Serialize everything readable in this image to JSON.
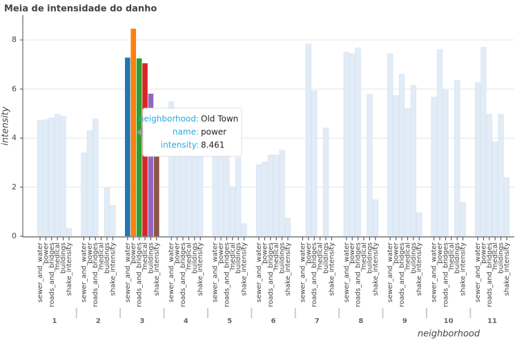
{
  "chart_data": {
    "type": "bar",
    "title": "Meia de intensidade do danho",
    "x_label": "neighborhood",
    "y_label": "intensity",
    "groups": [
      "1",
      "2",
      "3",
      "4",
      "5",
      "6",
      "7",
      "8",
      "9",
      "10",
      "11"
    ],
    "highlight_group": "3",
    "muted_color": "#e1ecf7",
    "series": [
      {
        "name": "sewer_and_water",
        "color": "#1f77b4",
        "values": [
          4.72,
          3.4,
          7.28,
          5.48,
          4.5,
          2.92,
          null,
          7.5,
          7.44,
          5.67,
          6.26
        ]
      },
      {
        "name": "power",
        "color": "#ff7f0e",
        "values": [
          4.75,
          4.3,
          8.461,
          5.0,
          4.7,
          3.03,
          7.84,
          7.44,
          5.73,
          7.61,
          7.7
        ]
      },
      {
        "name": "roads_and_bridges",
        "color": "#2ca02c",
        "values": [
          4.83,
          4.78,
          7.25,
          4.8,
          4.0,
          3.31,
          5.93,
          7.67,
          6.6,
          5.96,
          4.97
        ]
      },
      {
        "name": "medical",
        "color": "#d62728",
        "values": [
          4.97,
          null,
          7.05,
          4.2,
          2.02,
          3.31,
          null,
          null,
          5.2,
          null,
          3.85
        ]
      },
      {
        "name": "buildings",
        "color": "#9467bd",
        "values": [
          4.89,
          1.97,
          5.81,
          4.5,
          3.2,
          3.51,
          4.41,
          5.79,
          6.15,
          6.35,
          4.97
        ]
      },
      {
        "name": "shake_intensity",
        "color": "#8c564b",
        "values": [
          0.31,
          1.26,
          4.5,
          4.6,
          0.51,
          0.73,
          null,
          1.49,
          0.96,
          1.38,
          2.39
        ]
      }
    ],
    "ylim": [
      0,
      9
    ],
    "yticks": [
      0,
      2,
      4,
      6,
      8
    ],
    "grid": true,
    "tooltip": [
      {
        "label": "neighborhood:",
        "value": "Old Town"
      },
      {
        "label": "name:",
        "value": "power"
      },
      {
        "label": "intensity:",
        "value": 8.461
      }
    ]
  }
}
